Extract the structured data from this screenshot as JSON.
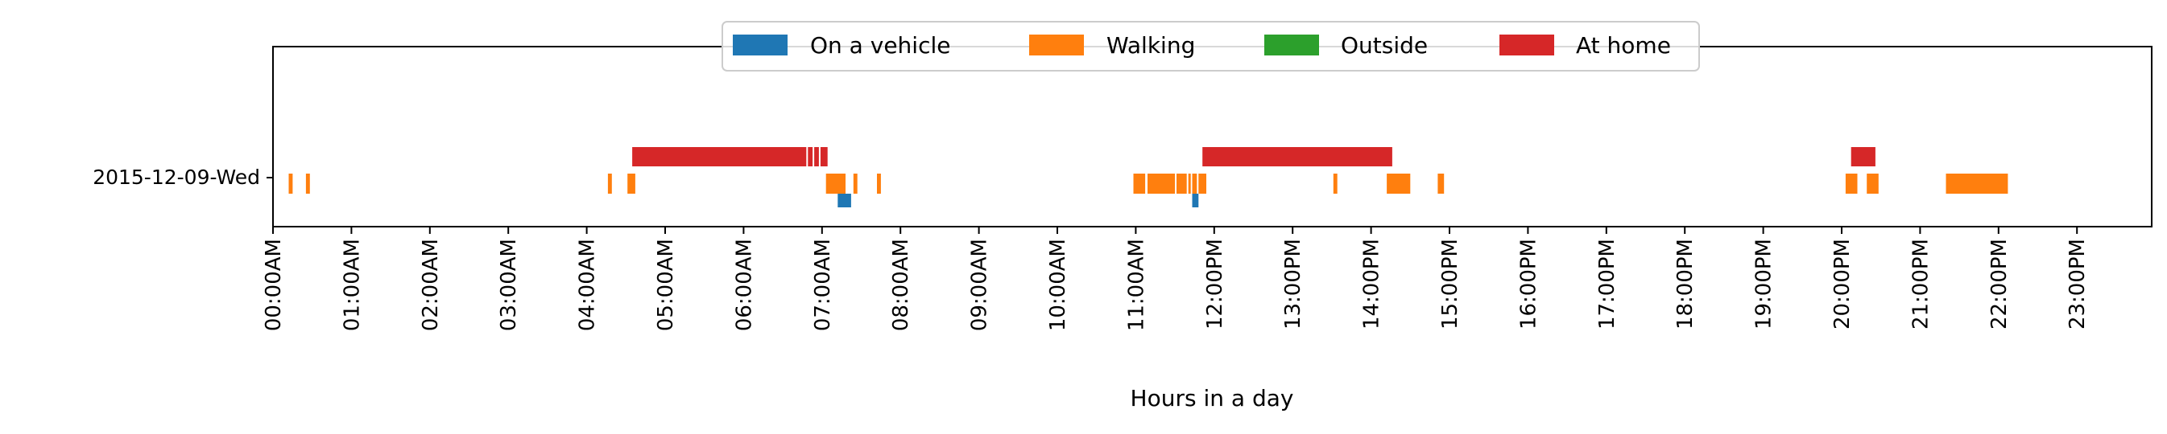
{
  "chart_data": {
    "type": "timeline",
    "title": "",
    "xlabel": "Hours in a day",
    "ylabel": "",
    "xlim": [
      0,
      24
    ],
    "x_ticks": [
      "00:00AM",
      "01:00AM",
      "02:00AM",
      "03:00AM",
      "04:00AM",
      "05:00AM",
      "06:00AM",
      "07:00AM",
      "08:00AM",
      "09:00AM",
      "10:00AM",
      "11:00AM",
      "12:00PM",
      "13:00PM",
      "14:00PM",
      "15:00PM",
      "16:00PM",
      "17:00PM",
      "18:00PM",
      "19:00PM",
      "20:00PM",
      "21:00PM",
      "22:00PM",
      "23:00PM"
    ],
    "y_categories": [
      "2015-12-09-Wed"
    ],
    "legend_position": "top-center",
    "grid": false,
    "series": [
      {
        "name": "On a vehicle",
        "color": "#1f77b4",
        "lane": "bottom",
        "intervals": [
          [
            7.2,
            7.37
          ],
          [
            11.72,
            11.8
          ]
        ]
      },
      {
        "name": "Walking",
        "color": "#ff7f0e",
        "lane": "middle",
        "intervals": [
          [
            0.2,
            0.25
          ],
          [
            0.42,
            0.47
          ],
          [
            4.27,
            4.32
          ],
          [
            4.52,
            4.62
          ],
          [
            7.05,
            7.3
          ],
          [
            7.4,
            7.45
          ],
          [
            7.7,
            7.75
          ],
          [
            10.97,
            11.12
          ],
          [
            11.15,
            11.5
          ],
          [
            11.52,
            11.65
          ],
          [
            11.67,
            11.7
          ],
          [
            11.72,
            11.78
          ],
          [
            11.8,
            11.9
          ],
          [
            13.52,
            13.57
          ],
          [
            14.2,
            14.5
          ],
          [
            14.85,
            14.93
          ],
          [
            20.05,
            20.2
          ],
          [
            20.32,
            20.47
          ],
          [
            21.33,
            22.12
          ]
        ]
      },
      {
        "name": "Outside",
        "color": "#2ca02c",
        "lane": "middle",
        "intervals": []
      },
      {
        "name": "At home",
        "color": "#d62728",
        "lane": "top",
        "intervals": [
          [
            4.58,
            6.8
          ],
          [
            6.82,
            6.88
          ],
          [
            6.9,
            6.96
          ],
          [
            6.98,
            7.07
          ],
          [
            11.85,
            14.27
          ],
          [
            20.12,
            20.43
          ]
        ]
      }
    ]
  }
}
